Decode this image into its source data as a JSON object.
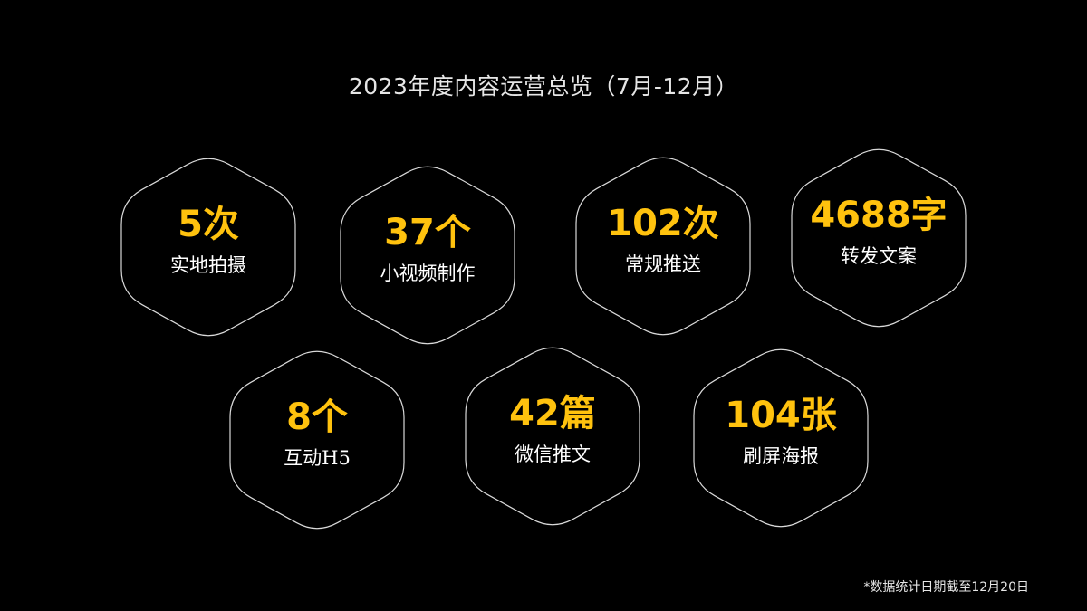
{
  "title": "2023年度内容运营总览（7月-12月）",
  "accent_color": "#ffc20e",
  "label_color": "#ffffff",
  "background_color": "#000000",
  "stats": [
    {
      "value": "5次",
      "label": "实地拍摄"
    },
    {
      "value": "37个",
      "label": "小视频制作"
    },
    {
      "value": "102次",
      "label": "常规推送"
    },
    {
      "value": "4688字",
      "label": "转发文案"
    },
    {
      "value": "8个",
      "label": "互动H5"
    },
    {
      "value": "42篇",
      "label": "微信推文"
    },
    {
      "value": "104张",
      "label": "刷屏海报"
    }
  ],
  "footnote": "*数据统计日期截至12月20日"
}
